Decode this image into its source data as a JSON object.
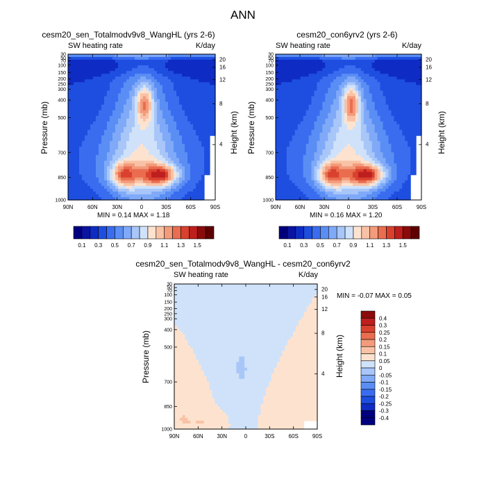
{
  "main_title": "ANN",
  "colors": {
    "abs_scale": [
      "#00007f",
      "#0a14a0",
      "#0e2cc4",
      "#1e4ee0",
      "#3a6cf0",
      "#5a8ef4",
      "#80aaf8",
      "#a8c6f8",
      "#cfe2fa",
      "#fde3cf",
      "#f9c2a6",
      "#f39b7b",
      "#ea6d4f",
      "#d9412e",
      "#be1e1e",
      "#8b0b0b",
      "#5f0000"
    ],
    "diff_scale": [
      "#00007f",
      "#0e2cc4",
      "#1e4ee0",
      "#3a6cf0",
      "#5a8ef4",
      "#80aaf8",
      "#a8c6f8",
      "#cfe2fa",
      "#fde3cf",
      "#f9c2a6",
      "#f39b7b",
      "#ea6d4f",
      "#d9412e",
      "#be1e1e",
      "#8b0b0b"
    ]
  },
  "chart_data": [
    {
      "type": "heatmap",
      "title": "cesm20_sen_Totalmodv9v8_WangHL (yrs 2-6)",
      "subtitle_left": "SW heating rate",
      "subtitle_right": "K/day",
      "xlabel": "",
      "ylabel": "Pressure (mb)",
      "ylabel_right": "Height (km)",
      "x_ticks": [
        "90N",
        "60N",
        "30N",
        "0",
        "30S",
        "60S",
        "90S"
      ],
      "y_ticks": [
        "30",
        "50",
        "70",
        "100",
        "150",
        "200",
        "250",
        "300",
        "400",
        "500",
        "700",
        "850",
        "1000"
      ],
      "y_right_ticks": [
        "20",
        "16",
        "12",
        "8",
        "4"
      ],
      "stats": "MIN =  0.14  MAX =  1.18",
      "levels": [
        "0.1",
        "0.3",
        "0.5",
        "0.7",
        "0.9",
        "1.1",
        "1.3",
        "1.5"
      ],
      "summary": {
        "min": 0.14,
        "max": 1.18
      }
    },
    {
      "type": "heatmap",
      "title": "cesm20_con6yrv2 (yrs 2-6)",
      "subtitle_left": "SW heating rate",
      "subtitle_right": "K/day",
      "xlabel": "",
      "ylabel": "Pressure (mb)",
      "ylabel_right": "Height (km)",
      "x_ticks": [
        "90N",
        "60N",
        "30N",
        "0",
        "30S",
        "60S",
        "90S"
      ],
      "y_ticks": [
        "30",
        "50",
        "70",
        "100",
        "150",
        "200",
        "250",
        "300",
        "400",
        "500",
        "700",
        "850",
        "1000"
      ],
      "y_right_ticks": [
        "20",
        "16",
        "12",
        "8",
        "4"
      ],
      "stats": "MIN =  0.16  MAX =  1.20",
      "levels": [
        "0.1",
        "0.3",
        "0.5",
        "0.7",
        "0.9",
        "1.1",
        "1.3",
        "1.5"
      ],
      "summary": {
        "min": 0.16,
        "max": 1.2
      }
    },
    {
      "type": "heatmap",
      "title": "cesm20_sen_Totalmodv9v8_WangHL - cesm20_con6yrv2",
      "subtitle_left": "SW heating rate",
      "subtitle_right": "K/day",
      "xlabel": "",
      "ylabel": "Pressure (mb)",
      "ylabel_right": "Height (km)",
      "x_ticks": [
        "90N",
        "60N",
        "30N",
        "0",
        "30S",
        "60S",
        "90S"
      ],
      "y_ticks": [
        "30",
        "50",
        "70",
        "100",
        "150",
        "200",
        "250",
        "300",
        "400",
        "500",
        "700",
        "850",
        "1000"
      ],
      "y_right_ticks": [
        "20",
        "16",
        "12",
        "8",
        "4"
      ],
      "stats": "MIN =  -0.07  MAX =   0.05",
      "levels": [
        "0.4",
        "0.3",
        "0.25",
        "0.2",
        "0.15",
        "0.1",
        "0.05",
        "0",
        "-0.05",
        "-0.1",
        "-0.15",
        "-0.2",
        "-0.25",
        "-0.3",
        "-0.4"
      ],
      "summary": {
        "min": -0.07,
        "max": 0.05
      }
    }
  ]
}
